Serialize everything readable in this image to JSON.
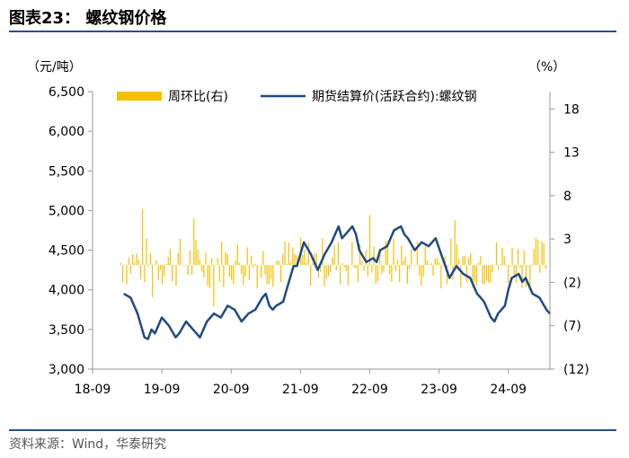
{
  "header": {
    "title": "图表23：  螺纹钢价格"
  },
  "footer": {
    "source": "资料来源：Wind，华泰研究"
  },
  "chart_data": {
    "type": "line",
    "left_unit": "（元/吨）",
    "right_unit": "（%）",
    "x_ticks": [
      "18-09",
      "19-09",
      "20-09",
      "21-09",
      "22-09",
      "23-09",
      "24-09"
    ],
    "y_left": {
      "ticks": [
        "3,000",
        "3,500",
        "4,000",
        "4,500",
        "5,000",
        "5,500",
        "6,000",
        "6,500"
      ],
      "range": [
        3000,
        6500
      ]
    },
    "y_right": {
      "ticks": [
        "(12)",
        "(7)",
        "(2)",
        "3",
        "8",
        "13",
        "18"
      ],
      "range": [
        -12,
        20
      ]
    },
    "legend": [
      {
        "name": "周环比(右)",
        "style": "bar"
      },
      {
        "name": "期货结算价(活跃合约):螺纹钢",
        "style": "line"
      }
    ],
    "colors": {
      "bar": "#f5c000",
      "line": "#1f4a86",
      "axis": "#999999",
      "rule": "#2b4f8a"
    },
    "series": [
      {
        "name": "期货结算价(活跃合约):螺纹钢",
        "axis": "left",
        "x": [
          2019.2,
          2019.3,
          2019.4,
          2019.5,
          2019.55,
          2019.6,
          2019.65,
          2019.75,
          2019.85,
          2019.95,
          2020.0,
          2020.1,
          2020.2,
          2020.3,
          2020.35,
          2020.4,
          2020.5,
          2020.6,
          2020.7,
          2020.8,
          2020.9,
          2021.0,
          2021.1,
          2021.2,
          2021.25,
          2021.3,
          2021.35,
          2021.4,
          2021.5,
          2021.55,
          2021.6,
          2021.65,
          2021.7,
          2021.8,
          2021.9,
          2022.0,
          2022.1,
          2022.2,
          2022.25,
          2022.3,
          2022.35,
          2022.4,
          2022.5,
          2022.55,
          2022.6,
          2022.7,
          2022.8,
          2022.85,
          2022.9,
          2023.0,
          2023.1,
          2023.2,
          2023.25,
          2023.3,
          2023.4,
          2023.5,
          2023.6,
          2023.7,
          2023.8,
          2023.9,
          2024.0,
          2024.1,
          2024.2,
          2024.3,
          2024.35,
          2024.4,
          2024.5,
          2024.55,
          2024.6,
          2024.7,
          2024.75,
          2024.8,
          2024.9,
          2024.95,
          2025.0,
          2025.1,
          2025.2,
          2025.3,
          2025.35
        ],
        "y": [
          3950,
          3900,
          3700,
          3400,
          3380,
          3500,
          3450,
          3650,
          3550,
          3400,
          3450,
          3600,
          3500,
          3400,
          3500,
          3600,
          3700,
          3650,
          3800,
          3750,
          3600,
          3700,
          3750,
          3900,
          3950,
          3800,
          3750,
          3800,
          3850,
          4000,
          4150,
          4300,
          4300,
          4600,
          4450,
          4250,
          4450,
          4600,
          4700,
          4800,
          4650,
          4700,
          4800,
          4700,
          4500,
          4350,
          4400,
          4350,
          4500,
          4550,
          4750,
          4800,
          4700,
          4650,
          4500,
          4600,
          4550,
          4650,
          4400,
          4150,
          4300,
          4200,
          4150,
          3950,
          3900,
          3850,
          3650,
          3600,
          3700,
          3800,
          4000,
          4150,
          4200,
          4100,
          4150,
          3950,
          3900,
          3750,
          3700
        ]
      }
    ]
  }
}
